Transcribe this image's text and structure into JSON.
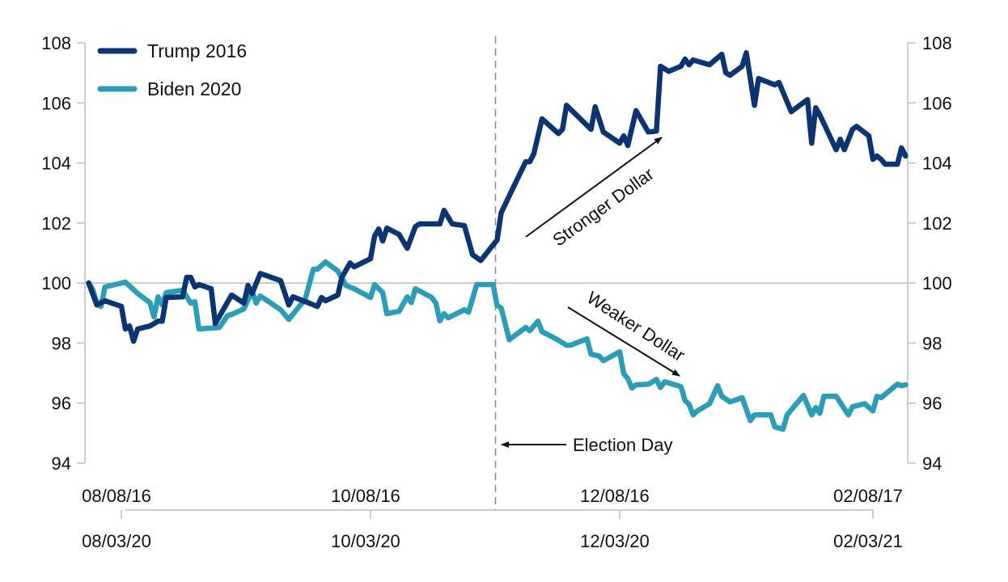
{
  "chart_data": {
    "type": "line",
    "title": "",
    "xlabel": "",
    "ylabel": "",
    "ylim": [
      94,
      108
    ],
    "yticks": [
      "94",
      "96",
      "98",
      "100",
      "102",
      "104",
      "106",
      "108"
    ],
    "y_axes": "left and right (mirrored)",
    "reference_line": 100,
    "grid": false,
    "legend_position": "top-left",
    "x_axis_top": {
      "ticks": [
        "08/08/16",
        "10/08/16",
        "12/08/16",
        "02/08/17"
      ]
    },
    "x_axis_bottom": {
      "ticks": [
        "08/03/20",
        "10/03/20",
        "12/03/20",
        "02/03/21"
      ]
    },
    "annotations": {
      "election_day": "Election Day",
      "stronger": "Stronger Dollar",
      "weaker": "Weaker Dollar"
    },
    "colors": {
      "trump": "#0b3572",
      "biden": "#2b9db6",
      "axis": "#bdbdbd"
    },
    "series": [
      {
        "name": "Trump 2016",
        "x_axis": "top",
        "points": [
          [
            "07/31/16",
            100.0
          ],
          [
            "08/02/16",
            99.27
          ],
          [
            "08/04/16",
            99.41
          ],
          [
            "08/08/16",
            99.22
          ],
          [
            "08/09/16",
            98.47
          ],
          [
            "08/10/16",
            98.57
          ],
          [
            "08/11/16",
            98.06
          ],
          [
            "08/12/16",
            98.47
          ],
          [
            "08/15/16",
            98.57
          ],
          [
            "08/17/16",
            98.73
          ],
          [
            "08/18/16",
            98.73
          ],
          [
            "08/19/16",
            99.52
          ],
          [
            "08/23/16",
            99.54
          ],
          [
            "08/24/16",
            100.19
          ],
          [
            "08/25/16",
            100.19
          ],
          [
            "08/26/16",
            99.87
          ],
          [
            "08/27/16",
            99.95
          ],
          [
            "08/30/16",
            99.81
          ],
          [
            "08/31/16",
            98.65
          ],
          [
            "09/04/16",
            99.6
          ],
          [
            "09/07/16",
            99.33
          ],
          [
            "09/08/16",
            99.92
          ],
          [
            "09/09/16",
            99.65
          ],
          [
            "09/11/16",
            100.32
          ],
          [
            "09/16/16",
            100.08
          ],
          [
            "09/18/16",
            99.27
          ],
          [
            "09/19/16",
            99.54
          ],
          [
            "09/23/16",
            99.33
          ],
          [
            "09/25/16",
            99.22
          ],
          [
            "09/26/16",
            99.52
          ],
          [
            "09/27/16",
            99.41
          ],
          [
            "09/30/16",
            99.6
          ],
          [
            "10/01/16",
            100.19
          ],
          [
            "10/03/16",
            100.67
          ],
          [
            "10/04/16",
            100.54
          ],
          [
            "10/08/16",
            100.81
          ],
          [
            "10/09/16",
            101.56
          ],
          [
            "10/10/16",
            101.8
          ],
          [
            "10/11/16",
            101.4
          ],
          [
            "10/12/16",
            101.83
          ],
          [
            "10/15/16",
            101.62
          ],
          [
            "10/17/16",
            101.16
          ],
          [
            "10/19/16",
            101.88
          ],
          [
            "10/20/16",
            101.97
          ],
          [
            "10/25/16",
            101.97
          ],
          [
            "10/26/16",
            102.42
          ],
          [
            "10/28/16",
            101.97
          ],
          [
            "10/31/16",
            101.91
          ],
          [
            "11/02/16",
            100.94
          ],
          [
            "11/04/16",
            100.75
          ],
          [
            "11/07/16",
            101.27
          ],
          [
            "11/08/16",
            101.43
          ],
          [
            "11/09/16",
            102.34
          ],
          [
            "11/11/16",
            102.91
          ],
          [
            "11/15/16",
            104.04
          ],
          [
            "11/16/16",
            104.04
          ],
          [
            "11/17/16",
            104.31
          ],
          [
            "11/19/16",
            105.47
          ],
          [
            "11/23/16",
            104.98
          ],
          [
            "11/24/16",
            105.12
          ],
          [
            "11/25/16",
            105.92
          ],
          [
            "12/01/16",
            105.12
          ],
          [
            "12/02/16",
            105.87
          ],
          [
            "12/04/16",
            105.03
          ],
          [
            "12/08/16",
            104.66
          ],
          [
            "12/09/16",
            104.9
          ],
          [
            "12/10/16",
            104.58
          ],
          [
            "12/12/16",
            105.74
          ],
          [
            "12/15/16",
            105.03
          ],
          [
            "12/17/16",
            105.06
          ],
          [
            "12/18/16",
            107.22
          ],
          [
            "12/20/16",
            107.05
          ],
          [
            "12/23/16",
            107.22
          ],
          [
            "12/24/16",
            107.46
          ],
          [
            "12/25/16",
            107.27
          ],
          [
            "12/26/16",
            107.43
          ],
          [
            "12/30/16",
            107.27
          ],
          [
            "01/02/17",
            107.62
          ],
          [
            "01/03/17",
            107.0
          ],
          [
            "01/04/17",
            106.92
          ],
          [
            "01/07/17",
            107.22
          ],
          [
            "01/08/17",
            107.67
          ],
          [
            "01/10/17",
            105.92
          ],
          [
            "01/11/17",
            106.81
          ],
          [
            "01/15/17",
            106.6
          ],
          [
            "01/16/17",
            106.68
          ],
          [
            "01/19/17",
            105.71
          ],
          [
            "01/23/17",
            106.11
          ],
          [
            "01/24/17",
            104.66
          ],
          [
            "01/25/17",
            105.84
          ],
          [
            "01/26/17",
            105.6
          ],
          [
            "01/30/17",
            104.44
          ],
          [
            "01/31/17",
            104.79
          ],
          [
            "02/01/17",
            104.44
          ],
          [
            "02/03/17",
            105.12
          ],
          [
            "02/04/17",
            105.22
          ],
          [
            "02/07/17",
            104.9
          ],
          [
            "02/08/17",
            104.12
          ],
          [
            "02/09/17",
            104.23
          ],
          [
            "02/10/17",
            104.12
          ],
          [
            "02/11/17",
            103.96
          ],
          [
            "02/14/17",
            103.96
          ],
          [
            "02/15/17",
            104.5
          ],
          [
            "02/16/17",
            104.23
          ]
        ]
      },
      {
        "name": "Biden 2020",
        "x_axis": "bottom",
        "points": [
          [
            "07/26/20",
            100.0
          ],
          [
            "07/27/20",
            99.78
          ],
          [
            "07/28/20",
            99.33
          ],
          [
            "07/29/20",
            99.22
          ],
          [
            "07/30/20",
            99.87
          ],
          [
            "08/04/20",
            100.03
          ],
          [
            "08/07/20",
            99.65
          ],
          [
            "08/10/20",
            99.35
          ],
          [
            "08/11/20",
            98.87
          ],
          [
            "08/12/20",
            99.54
          ],
          [
            "08/13/20",
            99.27
          ],
          [
            "08/14/20",
            99.68
          ],
          [
            "08/18/20",
            99.76
          ],
          [
            "08/20/20",
            99.33
          ],
          [
            "08/21/20",
            99.38
          ],
          [
            "08/22/20",
            98.47
          ],
          [
            "08/27/20",
            98.52
          ],
          [
            "08/29/20",
            98.92
          ],
          [
            "08/30/20",
            98.95
          ],
          [
            "09/02/20",
            99.14
          ],
          [
            "09/04/20",
            99.73
          ],
          [
            "09/05/20",
            99.33
          ],
          [
            "09/06/20",
            99.57
          ],
          [
            "09/11/20",
            99.11
          ],
          [
            "09/13/20",
            98.79
          ],
          [
            "09/17/20",
            99.46
          ],
          [
            "09/19/20",
            100.46
          ],
          [
            "09/20/20",
            100.46
          ],
          [
            "09/22/20",
            100.7
          ],
          [
            "09/25/20",
            100.4
          ],
          [
            "09/27/20",
            99.92
          ],
          [
            "09/29/20",
            99.81
          ],
          [
            "10/03/20",
            99.52
          ],
          [
            "10/04/20",
            99.95
          ],
          [
            "10/06/20",
            99.68
          ],
          [
            "10/07/20",
            98.98
          ],
          [
            "10/10/20",
            99.06
          ],
          [
            "10/12/20",
            99.54
          ],
          [
            "10/13/20",
            99.35
          ],
          [
            "10/14/20",
            99.81
          ],
          [
            "10/18/20",
            99.52
          ],
          [
            "10/19/20",
            99.33
          ],
          [
            "10/20/20",
            98.74
          ],
          [
            "10/21/20",
            98.98
          ],
          [
            "10/22/20",
            98.84
          ],
          [
            "10/26/20",
            99.11
          ],
          [
            "10/27/20",
            99.03
          ],
          [
            "10/29/20",
            99.95
          ],
          [
            "11/02/20",
            99.95
          ],
          [
            "11/03/20",
            99.25
          ],
          [
            "11/04/20",
            99.17
          ],
          [
            "11/06/20",
            98.11
          ],
          [
            "11/10/20",
            98.52
          ],
          [
            "11/11/20",
            98.41
          ],
          [
            "11/13/20",
            98.73
          ],
          [
            "11/14/20",
            98.38
          ],
          [
            "11/17/20",
            98.17
          ],
          [
            "11/20/20",
            97.93
          ],
          [
            "11/21/20",
            97.93
          ],
          [
            "11/25/20",
            98.14
          ],
          [
            "11/26/20",
            97.63
          ],
          [
            "11/28/20",
            97.57
          ],
          [
            "11/29/20",
            97.41
          ],
          [
            "12/03/20",
            97.71
          ],
          [
            "12/04/20",
            96.98
          ],
          [
            "12/05/20",
            96.82
          ],
          [
            "12/06/20",
            96.5
          ],
          [
            "12/07/20",
            96.61
          ],
          [
            "12/10/20",
            96.63
          ],
          [
            "12/12/20",
            96.79
          ],
          [
            "12/13/20",
            96.52
          ],
          [
            "12/14/20",
            96.71
          ],
          [
            "12/18/20",
            96.55
          ],
          [
            "12/19/20",
            96.09
          ],
          [
            "12/20/20",
            95.96
          ],
          [
            "12/21/20",
            95.61
          ],
          [
            "12/22/20",
            95.74
          ],
          [
            "12/25/20",
            95.98
          ],
          [
            "12/27/20",
            96.58
          ],
          [
            "12/28/20",
            96.23
          ],
          [
            "12/30/20",
            96.04
          ],
          [
            "01/02/21",
            96.18
          ],
          [
            "01/04/21",
            95.42
          ],
          [
            "01/05/21",
            95.61
          ],
          [
            "01/09/21",
            95.61
          ],
          [
            "01/10/21",
            95.21
          ],
          [
            "01/12/21",
            95.13
          ],
          [
            "01/13/21",
            95.61
          ],
          [
            "01/17/21",
            96.26
          ],
          [
            "01/19/21",
            95.61
          ],
          [
            "01/20/21",
            95.85
          ],
          [
            "01/21/21",
            95.66
          ],
          [
            "01/22/21",
            96.23
          ],
          [
            "01/25/21",
            96.23
          ],
          [
            "01/28/21",
            95.61
          ],
          [
            "01/29/21",
            95.88
          ],
          [
            "02/01/21",
            95.98
          ],
          [
            "02/03/21",
            95.74
          ],
          [
            "02/04/21",
            96.23
          ],
          [
            "02/05/21",
            96.18
          ],
          [
            "02/09/21",
            96.63
          ],
          [
            "02/10/21",
            96.58
          ],
          [
            "02/11/21",
            96.61
          ]
        ]
      }
    ]
  }
}
